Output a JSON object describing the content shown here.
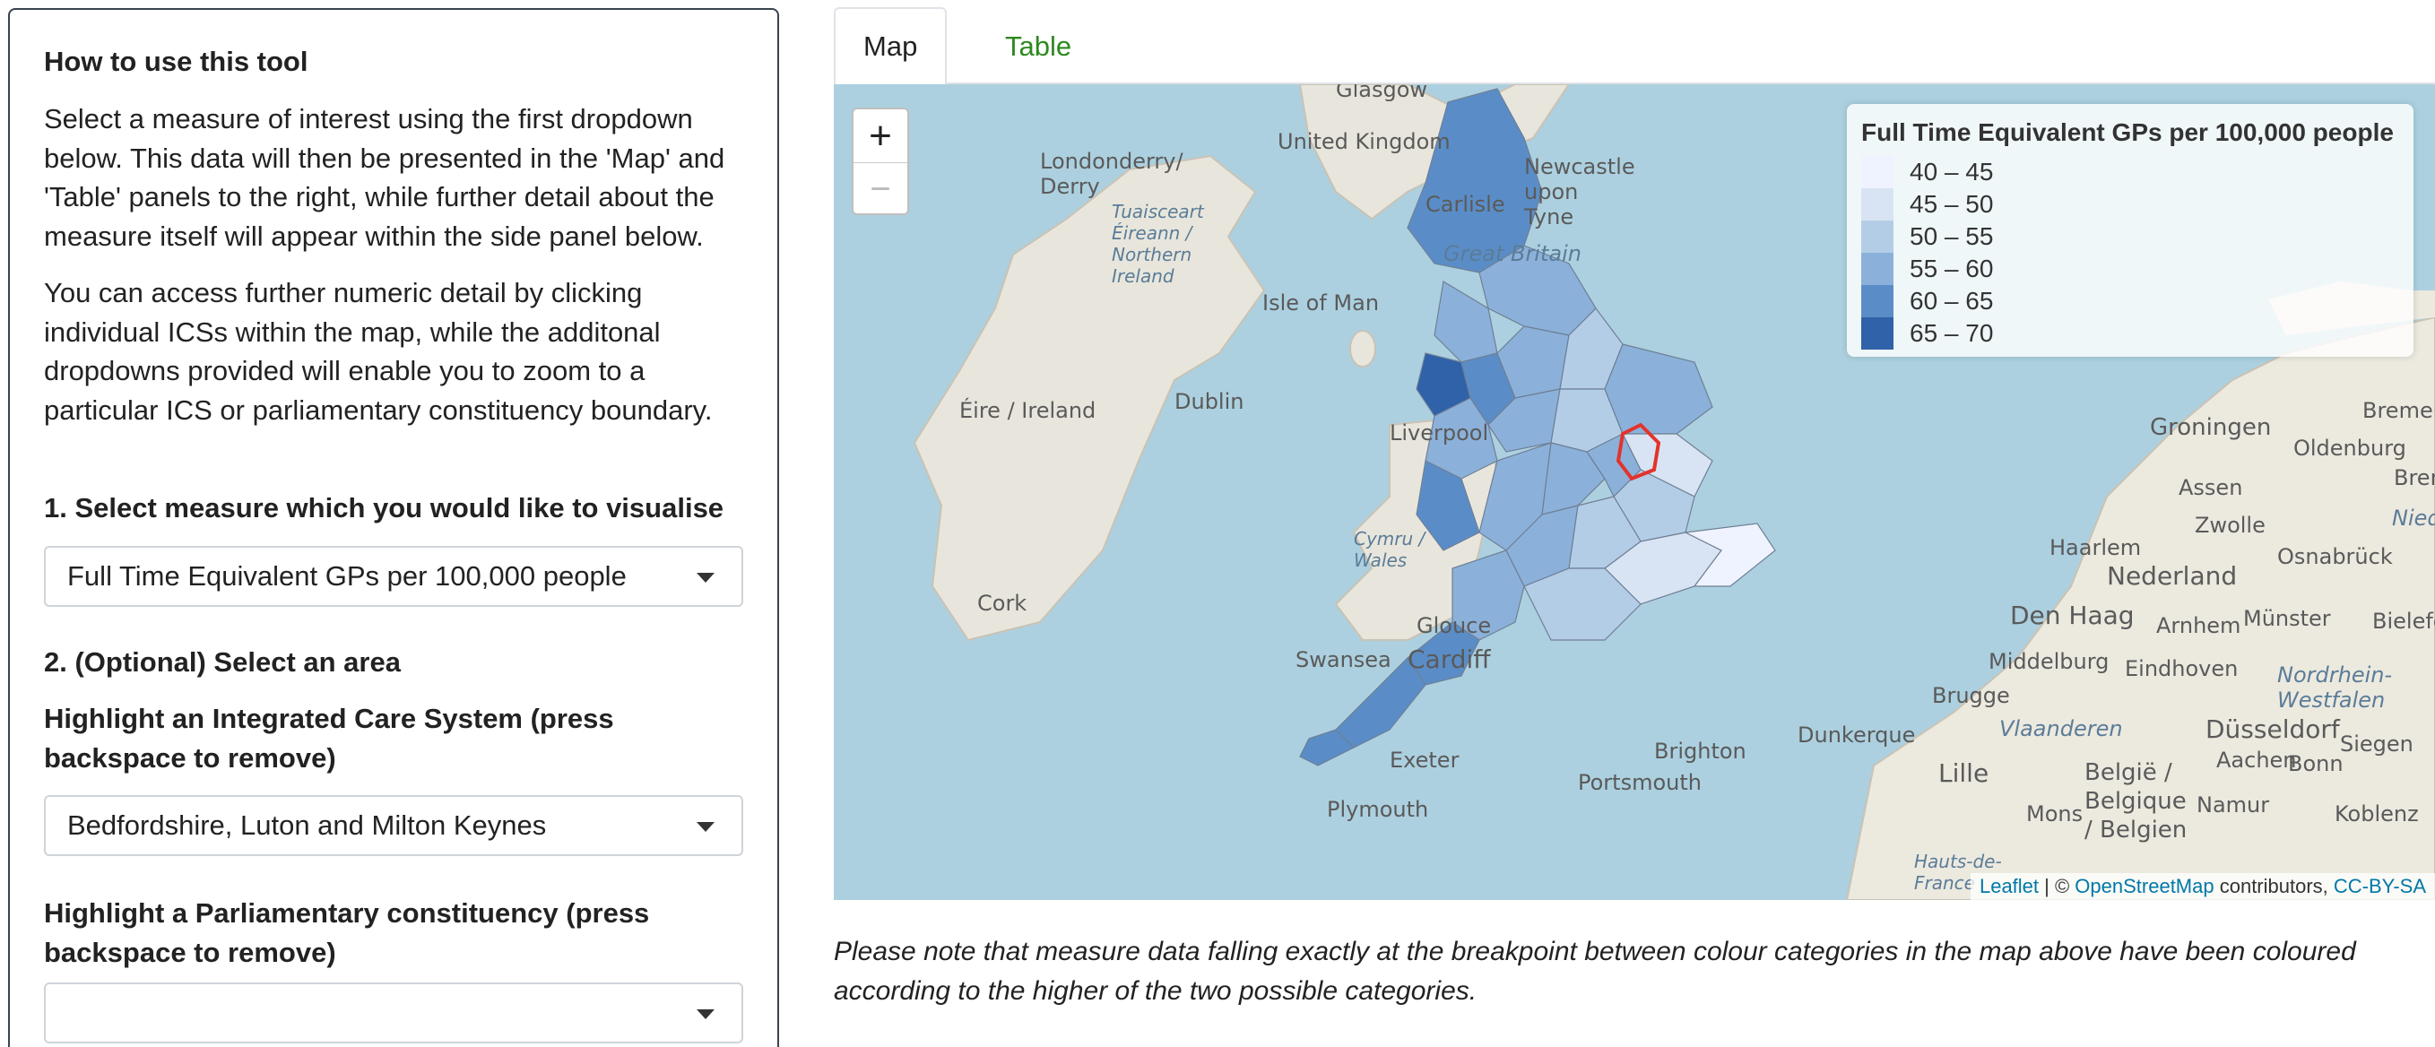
{
  "sidebar": {
    "how_to_title": "How to use this tool",
    "how_to_p1": "Select a measure of interest using the first dropdown below. This data will then be presented in the 'Map' and 'Table' panels to the right, while further detail about the measure itself will appear within the side panel below.",
    "how_to_p2": "You can access further numeric detail by clicking individual ICSs within the map, while the additonal dropdowns provided will enable you to zoom to a particular ICS or parliamentary constituency boundary.",
    "measure_label": "1. Select measure which you would like to visualise",
    "measure_value": "Full Time Equivalent GPs per 100,000 people",
    "area_label": "2. (Optional) Select an area",
    "ics_label": "Highlight an Integrated Care System (press backspace to remove)",
    "ics_value": "Bedfordshire, Luton and Milton Keynes",
    "constituency_label": "Highlight a Parliamentary constituency (press backspace to remove)",
    "constituency_value": ""
  },
  "tabs": [
    {
      "label": "Map",
      "active": true
    },
    {
      "label": "Table",
      "active": false
    }
  ],
  "map": {
    "zoom_in": "+",
    "zoom_out": "−",
    "legend": {
      "title": "Full Time Equivalent GPs per 100,000 people",
      "bins": [
        {
          "label": "40 – 45",
          "color": "#eff3ff"
        },
        {
          "label": "45 – 50",
          "color": "#d8e4f3"
        },
        {
          "label": "50 – 55",
          "color": "#b4cde7"
        },
        {
          "label": "55 – 60",
          "color": "#8bb1da"
        },
        {
          "label": "60 – 65",
          "color": "#5a8dc7"
        },
        {
          "label": "65 – 70",
          "color": "#2f62a8"
        }
      ]
    },
    "place_labels": {
      "glasgow": "Glasgow",
      "united_kingdom": "United Kingdom",
      "newcastle": "Newcastle upon Tyne",
      "carlisle": "Carlisle",
      "great_britain": "Great Britain",
      "londonderry": "Londonderry/ Derry",
      "tuaisceart": "Tuaisceart Éireann / Northern Ireland",
      "isle_of_man": "Isle of Man",
      "eire": "Éire / Ireland",
      "dublin": "Dublin",
      "liverpool": "Liverpool",
      "cork": "Cork",
      "cymru": "Cymru / Wales",
      "gloucester": "Glouce",
      "swansea": "Swansea",
      "cardiff": "Cardiff",
      "exeter": "Exeter",
      "plymouth": "Plymouth",
      "portsmouth": "Portsmouth",
      "brighton": "Brighton",
      "dunkerque": "Dunkerque",
      "groningen": "Groningen",
      "bremerha": "Bremerha",
      "oldenburg": "Oldenburg",
      "bren": "Bren",
      "assen": "Assen",
      "zwolle": "Zwolle",
      "nieder": "Nieder",
      "osnabruck": "Osnabrück",
      "haarlem": "Haarlem",
      "nederland": "Nederland",
      "den_haag": "Den Haag",
      "arnhem": "Arnhem",
      "munster": "Münster",
      "bielefe": "Bielefe",
      "middelburg": "Middelburg",
      "eindhoven": "Eindhoven",
      "nordrhein": "Nordrhein- Westfalen",
      "brugge": "Brugge",
      "vlaanderen": "Vlaanderen",
      "dusseldorf": "Düsseldorf",
      "siegen": "Siegen",
      "aachen": "Aachen",
      "bonn": "Bonn",
      "lille": "Lille",
      "belgie": "België / Belgique / Belgien",
      "mons": "Mons",
      "namur": "Namur",
      "koblenz": "Koblenz",
      "hauts_de": "Hauts-de- France"
    },
    "attribution": {
      "leaflet": "Leaflet",
      "sep": " | © ",
      "osm": "OpenStreetMap",
      "contributors": " contributors, ",
      "license": "CC-BY-SA"
    }
  },
  "note": "Please note that measure data falling exactly at the breakpoint between colour categories in the map above have been coloured according to the higher of the two possible categories."
}
